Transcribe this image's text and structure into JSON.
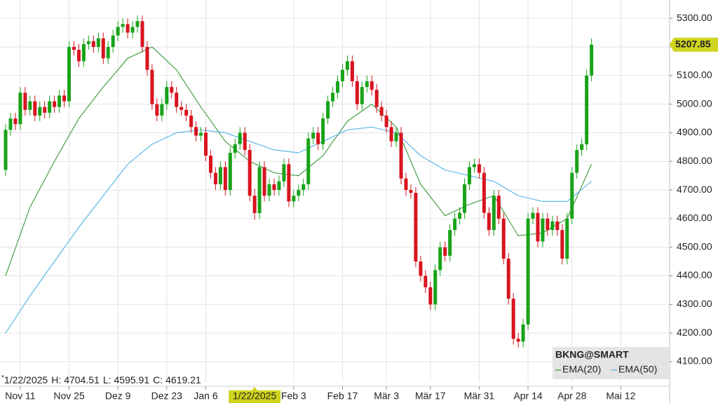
{
  "chart_data": {
    "type": "candlestick",
    "title": "BKNG@SMART",
    "up_color": "#19a319",
    "down_color": "#d7141e",
    "xlim": [
      -1.15,
      136
    ],
    "ylim": [
      4029,
      5364
    ],
    "grid": true,
    "xticks": [
      {
        "value": 3,
        "label": "Nov 11"
      },
      {
        "value": 13,
        "label": "Nov 25"
      },
      {
        "value": 23,
        "label": "Dez 9"
      },
      {
        "value": 33,
        "label": "Dez 23"
      },
      {
        "value": 41,
        "label": "Jan 6"
      },
      {
        "value": 59,
        "label": "Feb 3"
      },
      {
        "value": 69,
        "label": "Feb 17"
      },
      {
        "value": 78,
        "label": "Mär 3"
      },
      {
        "value": 87,
        "label": "Mär 17"
      },
      {
        "value": 97,
        "label": "Mär 31"
      },
      {
        "value": 107,
        "label": "Apr 14"
      },
      {
        "value": 116,
        "label": "Apr 28"
      },
      {
        "value": 126,
        "label": "Mai 12"
      }
    ],
    "yticks": [
      {
        "value": 4100,
        "label": "4100.00"
      },
      {
        "value": 4200,
        "label": "4200.00"
      },
      {
        "value": 4300,
        "label": "4300.00"
      },
      {
        "value": 4400,
        "label": "4400.00"
      },
      {
        "value": 4500,
        "label": "4500.00"
      },
      {
        "value": 4600,
        "label": "4600.00"
      },
      {
        "value": 4700,
        "label": "4700.00"
      },
      {
        "value": 4800,
        "label": "4800.00"
      },
      {
        "value": 4900,
        "label": "4900.00"
      },
      {
        "value": 5000,
        "label": "5000.00"
      },
      {
        "value": 5100,
        "label": "5100.00"
      },
      {
        "value": 5200,
        "label": "5200.00"
      },
      {
        "value": 5300,
        "label": "5300.00"
      }
    ],
    "candles": {
      "open": [
        4770,
        4910,
        4950,
        4930,
        5040,
        4980,
        5010,
        4960,
        4990,
        4970,
        5010,
        4990,
        5030,
        5010,
        5200,
        5190,
        5150,
        5210,
        5220,
        5200,
        5230,
        5160,
        5200,
        5240,
        5270,
        5280,
        5250,
        5270,
        5290,
        5200,
        5120,
        5000,
        4960,
        5000,
        5060,
        5040,
        4990,
        4980,
        4960,
        4920,
        4890,
        4900,
        4820,
        4760,
        4720,
        4780,
        4700,
        4830,
        4860,
        4900,
        4840,
        4680,
        4619.21,
        4780,
        4680,
        4720,
        4700,
        4730,
        4790,
        4660,
        4680,
        4700,
        4720,
        4880,
        4900,
        4860,
        4950,
        5010,
        5040,
        5080,
        5120,
        5150,
        5080,
        5000,
        5060,
        5080,
        5050,
        4990,
        4960,
        4920,
        4870,
        4900,
        4740,
        4700,
        4690,
        4450,
        4400,
        4360,
        4300,
        4420,
        4500,
        4470,
        4560,
        4600,
        4620,
        4720,
        4780,
        4790,
        4760,
        4620,
        4560,
        4680,
        4600,
        4460,
        4320,
        4180,
        4170,
        4230,
        4600,
        4620,
        4520,
        4600,
        4560,
        4590,
        4560,
        4460,
        4600,
        4760,
        4840,
        4860,
        5100
      ],
      "high": [
        4930,
        4970,
        4970,
        5060,
        5060,
        5030,
        5030,
        5010,
        5010,
        5030,
        5030,
        5050,
        5050,
        5220,
        5220,
        5210,
        5230,
        5240,
        5240,
        5250,
        5250,
        5220,
        5260,
        5290,
        5300,
        5300,
        5290,
        5310,
        5310,
        5220,
        5140,
        5020,
        5020,
        5080,
        5080,
        5060,
        5010,
        5000,
        4980,
        4940,
        4920,
        4920,
        4840,
        4780,
        4800,
        4800,
        4850,
        4880,
        4920,
        4920,
        4860,
        4704.51,
        4800,
        4800,
        4740,
        4740,
        4750,
        4810,
        4810,
        4700,
        4720,
        4740,
        4900,
        4920,
        4920,
        4970,
        5030,
        5060,
        5100,
        5140,
        5170,
        5170,
        5100,
        5080,
        5100,
        5100,
        5070,
        5010,
        4980,
        4940,
        4920,
        4920,
        4760,
        4720,
        4710,
        4470,
        4420,
        4380,
        4440,
        4520,
        4520,
        4580,
        4620,
        4640,
        4740,
        4800,
        4810,
        4810,
        4780,
        4640,
        4700,
        4700,
        4620,
        4480,
        4340,
        4200,
        4250,
        4620,
        4640,
        4640,
        4620,
        4620,
        4610,
        4610,
        4580,
        4620,
        4780,
        4860,
        4880,
        5120,
        5230
      ],
      "low": [
        4750,
        4890,
        4910,
        4910,
        4960,
        4960,
        4940,
        4940,
        4950,
        4950,
        4970,
        4970,
        4990,
        4990,
        5170,
        5130,
        5130,
        5190,
        5180,
        5180,
        5140,
        5140,
        5180,
        5220,
        5250,
        5230,
        5230,
        5250,
        5180,
        5100,
        4980,
        4940,
        4940,
        4980,
        5020,
        4970,
        4960,
        4940,
        4900,
        4870,
        4870,
        4800,
        4740,
        4700,
        4700,
        4680,
        4680,
        4810,
        4840,
        4820,
        4660,
        4595.91,
        4600,
        4660,
        4660,
        4680,
        4680,
        4710,
        4640,
        4640,
        4660,
        4680,
        4700,
        4860,
        4840,
        4840,
        4930,
        4990,
        5020,
        5060,
        5100,
        5060,
        4980,
        4980,
        5040,
        5030,
        4970,
        4940,
        4900,
        4850,
        4850,
        4720,
        4680,
        4670,
        4430,
        4380,
        4340,
        4280,
        4280,
        4400,
        4450,
        4450,
        4540,
        4580,
        4600,
        4700,
        4760,
        4740,
        4600,
        4540,
        4540,
        4580,
        4440,
        4300,
        4160,
        4150,
        4150,
        4210,
        4580,
        4500,
        4500,
        4540,
        4540,
        4540,
        4440,
        4440,
        4580,
        4740,
        4820,
        4840,
        5080
      ],
      "close": [
        4910,
        4950,
        4930,
        5040,
        4980,
        5010,
        4960,
        4990,
        4970,
        5010,
        4990,
        5030,
        5010,
        5200,
        5190,
        5150,
        5210,
        5220,
        5200,
        5230,
        5160,
        5200,
        5240,
        5270,
        5280,
        5250,
        5270,
        5290,
        5200,
        5120,
        5000,
        4960,
        5000,
        5060,
        5040,
        4990,
        4980,
        4960,
        4920,
        4890,
        4900,
        4820,
        4760,
        4720,
        4780,
        4700,
        4830,
        4860,
        4900,
        4840,
        4680,
        4619.21,
        4780,
        4680,
        4720,
        4700,
        4730,
        4790,
        4660,
        4680,
        4700,
        4720,
        4880,
        4900,
        4860,
        4950,
        5010,
        5040,
        5080,
        5120,
        5150,
        5080,
        5000,
        5060,
        5080,
        5050,
        4990,
        4960,
        4920,
        4870,
        4900,
        4740,
        4700,
        4690,
        4450,
        4400,
        4360,
        4300,
        4420,
        4500,
        4470,
        4560,
        4600,
        4620,
        4720,
        4780,
        4790,
        4760,
        4620,
        4560,
        4680,
        4600,
        4460,
        4320,
        4180,
        4170,
        4230,
        4600,
        4620,
        4520,
        4600,
        4560,
        4590,
        4560,
        4460,
        4600,
        4760,
        4840,
        4860,
        5100,
        5207.85
      ]
    },
    "series": [
      {
        "name": "EMA(20)",
        "color": "#4a9e4a",
        "x": [
          0,
          5,
          10,
          15,
          20,
          25,
          30,
          35,
          40,
          45,
          50,
          55,
          60,
          65,
          70,
          75,
          80,
          85,
          90,
          95,
          100,
          105,
          110,
          115,
          120
        ],
        "values": [
          4400,
          4640,
          4800,
          4950,
          5060,
          5160,
          5200,
          5120,
          4990,
          4870,
          4800,
          4760,
          4750,
          4820,
          4940,
          5000,
          4920,
          4720,
          4610,
          4650,
          4680,
          4540,
          4550,
          4600,
          4790
        ]
      },
      {
        "name": "EMA(50)",
        "color": "#5db8ea",
        "x": [
          0,
          5,
          10,
          15,
          20,
          25,
          30,
          35,
          40,
          45,
          50,
          55,
          60,
          65,
          70,
          75,
          80,
          85,
          90,
          95,
          100,
          105,
          110,
          115,
          120
        ],
        "values": [
          4200,
          4330,
          4450,
          4570,
          4680,
          4790,
          4860,
          4900,
          4910,
          4900,
          4870,
          4840,
          4830,
          4870,
          4910,
          4920,
          4900,
          4820,
          4770,
          4750,
          4730,
          4680,
          4660,
          4660,
          4730
        ]
      }
    ],
    "info": {
      "prefix": "*",
      "date": "1/22/2025",
      "h_label": "H:",
      "l_label": "L:",
      "c_label": "C:",
      "index": 51
    }
  }
}
